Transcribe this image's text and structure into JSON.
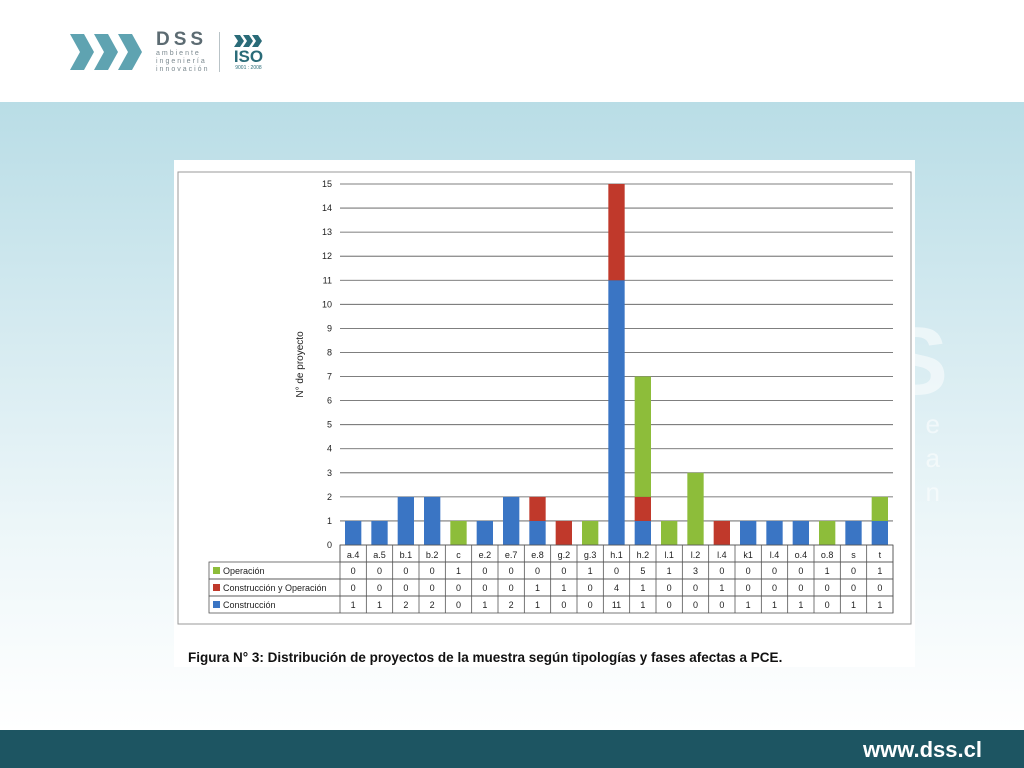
{
  "brand": {
    "name": "DSS",
    "tagline": [
      "ambiente",
      "ingeniería",
      "innovación"
    ],
    "iso": "ISO",
    "iso_standard": "9001 : 2008",
    "url": "www.dss.cl",
    "colors": {
      "footer": "#1d5562",
      "logo": "#2a6b78"
    }
  },
  "figure": {
    "caption": "Figura N° 3: Distribución de proyectos de la muestra según tipologías y fases afectas a PCE."
  },
  "chart_data": {
    "type": "bar",
    "stacked": true,
    "categories": [
      "a.4",
      "a.5",
      "b.1",
      "b.2",
      "c",
      "e.2",
      "e.7",
      "e.8",
      "g.2",
      "g.3",
      "h.1",
      "h.2",
      "l.1",
      "l.2",
      "l.4",
      "k1",
      "l.4",
      "o.4",
      "o.8",
      "s",
      "t"
    ],
    "series": [
      {
        "name": "Construcción",
        "color": "#3a75c4",
        "values": [
          1,
          1,
          2,
          2,
          0,
          1,
          2,
          1,
          0,
          0,
          11,
          1,
          0,
          0,
          0,
          1,
          1,
          1,
          0,
          1,
          1
        ]
      },
      {
        "name": "Construcción y Operación",
        "color": "#c0392b",
        "values": [
          0,
          0,
          0,
          0,
          0,
          0,
          0,
          1,
          1,
          0,
          4,
          1,
          0,
          0,
          1,
          0,
          0,
          0,
          0,
          0,
          0
        ]
      },
      {
        "name": "Operación",
        "color": "#8dbd3a",
        "values": [
          0,
          0,
          0,
          0,
          1,
          0,
          0,
          0,
          0,
          1,
          0,
          5,
          1,
          3,
          0,
          0,
          0,
          0,
          1,
          0,
          1
        ]
      }
    ],
    "table_rows": [
      "Operación",
      "Construcción y Operación",
      "Construcción"
    ],
    "ylabel": "N° de proyecto",
    "ylim": [
      0,
      15
    ],
    "yticks": [
      0,
      1,
      2,
      3,
      4,
      5,
      6,
      7,
      8,
      9,
      10,
      11,
      12,
      13,
      14,
      15
    ],
    "grid": true,
    "legend": "data-table-below"
  }
}
